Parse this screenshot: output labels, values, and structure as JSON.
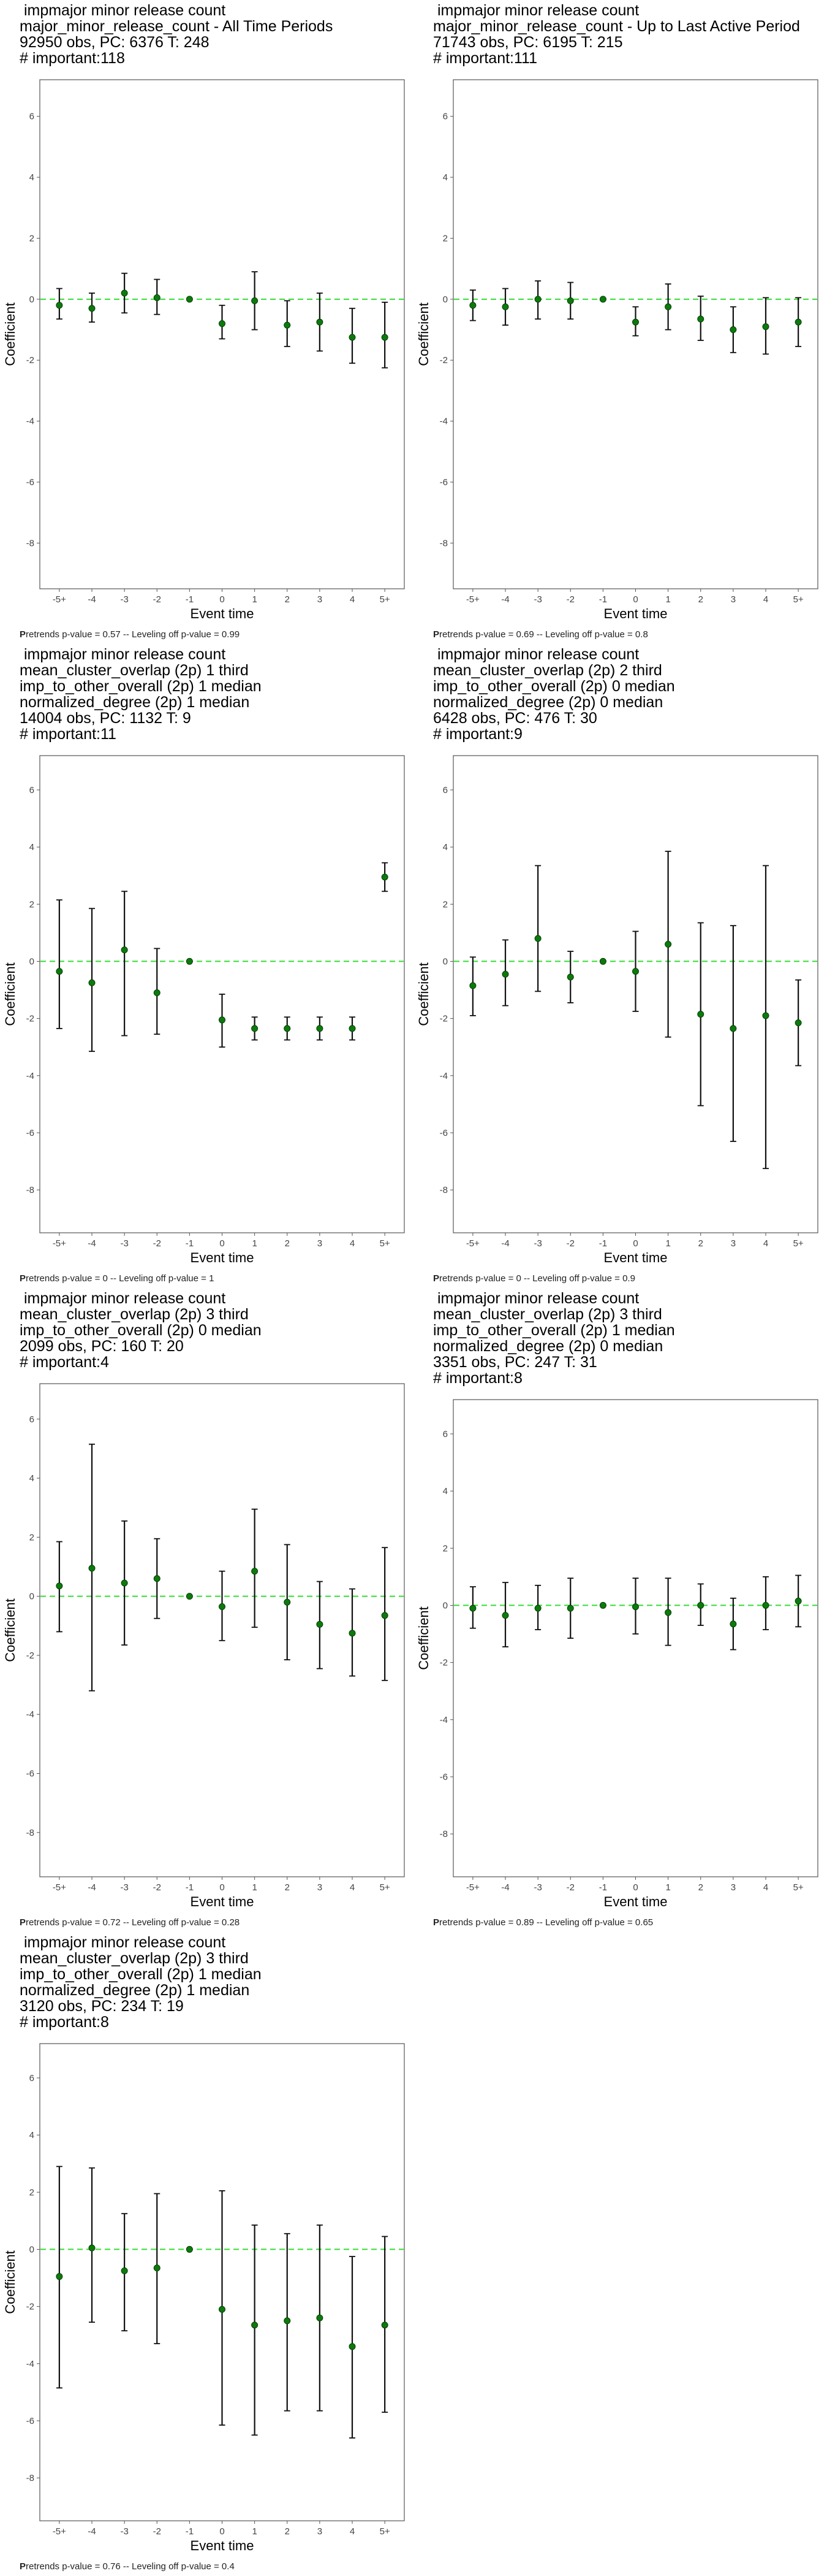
{
  "chart_data": [
    {
      "type": "scatter",
      "title_lines": [
        " impmajor minor release count",
        "major_minor_release_count - All Time Periods",
        "92950 obs, PC: 6376 T: 248",
        "# important:118"
      ],
      "xlabel": "Event time",
      "ylabel": "Coefficient",
      "categories": [
        "-5+",
        "-4",
        "-3",
        "-2",
        "-1",
        "0",
        "1",
        "2",
        "3",
        "4",
        "5+"
      ],
      "yticks": [
        6,
        4,
        2,
        0,
        -2,
        -4,
        -6,
        -8
      ],
      "ylim": [
        -9.5,
        7.2
      ],
      "estimates": [
        -0.2,
        -0.3,
        0.2,
        0.05,
        0,
        -0.8,
        -0.05,
        -0.85,
        -0.75,
        -1.25,
        -1.25
      ],
      "ci_low": [
        -0.65,
        -0.75,
        -0.45,
        -0.5,
        0,
        -1.3,
        -1.0,
        -1.55,
        -1.7,
        -2.1,
        -2.25
      ],
      "ci_high": [
        0.35,
        0.2,
        0.85,
        0.65,
        0,
        -0.2,
        0.9,
        -0.05,
        0.2,
        -0.3,
        -0.1
      ],
      "footnote_bold": "P",
      "footnote": "retrends p-value = 0.57 -- Leveling off p-value = 0.99"
    },
    {
      "type": "scatter",
      "title_lines": [
        " impmajor minor release count",
        "major_minor_release_count - Up to Last Active Period",
        "71743 obs, PC: 6195 T: 215",
        "# important:111"
      ],
      "xlabel": "Event time",
      "ylabel": "Coefficient",
      "categories": [
        "-5+",
        "-4",
        "-3",
        "-2",
        "-1",
        "0",
        "1",
        "2",
        "3",
        "4",
        "5+"
      ],
      "yticks": [
        6,
        4,
        2,
        0,
        -2,
        -4,
        -6,
        -8
      ],
      "ylim": [
        -9.5,
        7.2
      ],
      "estimates": [
        -0.2,
        -0.25,
        0.0,
        -0.05,
        0,
        -0.75,
        -0.25,
        -0.65,
        -1.0,
        -0.9,
        -0.75
      ],
      "ci_low": [
        -0.7,
        -0.85,
        -0.65,
        -0.65,
        0,
        -1.2,
        -1.0,
        -1.35,
        -1.75,
        -1.8,
        -1.55
      ],
      "ci_high": [
        0.3,
        0.35,
        0.6,
        0.55,
        0,
        -0.25,
        0.5,
        0.1,
        -0.25,
        0.05,
        0.05
      ],
      "footnote_bold": "P",
      "footnote": "retrends p-value = 0.69 -- Leveling off p-value = 0.8"
    },
    {
      "type": "scatter",
      "title_lines": [
        " impmajor minor release count",
        "mean_cluster_overlap (2p) 1 third",
        "imp_to_other_overall (2p) 1 median",
        "normalized_degree (2p) 1 median",
        "14004 obs, PC: 1132 T: 9",
        "# important:11"
      ],
      "xlabel": "Event time",
      "ylabel": "Coefficient",
      "categories": [
        "-5+",
        "-4",
        "-3",
        "-2",
        "-1",
        "0",
        "1",
        "2",
        "3",
        "4",
        "5+"
      ],
      "yticks": [
        6,
        4,
        2,
        0,
        -2,
        -4,
        -6,
        -8
      ],
      "ylim": [
        -9.5,
        7.2
      ],
      "estimates": [
        -0.35,
        -0.75,
        0.4,
        -1.1,
        0,
        -2.05,
        -2.35,
        -2.35,
        -2.35,
        -2.35,
        2.95
      ],
      "ci_low": [
        -2.35,
        -3.15,
        -2.6,
        -2.55,
        0,
        -3.0,
        -2.75,
        -2.75,
        -2.75,
        -2.75,
        2.45
      ],
      "ci_high": [
        2.15,
        1.85,
        2.45,
        0.45,
        0,
        -1.15,
        -1.95,
        -1.95,
        -1.95,
        -1.95,
        3.45
      ],
      "footnote_bold": "P",
      "footnote": "retrends p-value = 0 -- Leveling off p-value = 1"
    },
    {
      "type": "scatter",
      "title_lines": [
        " impmajor minor release count",
        "mean_cluster_overlap (2p) 2 third",
        "imp_to_other_overall (2p) 0 median",
        "normalized_degree (2p) 0 median",
        "6428 obs, PC: 476 T: 30",
        "# important:9"
      ],
      "xlabel": "Event time",
      "ylabel": "Coefficient",
      "categories": [
        "-5+",
        "-4",
        "-3",
        "-2",
        "-1",
        "0",
        "1",
        "2",
        "3",
        "4",
        "5+"
      ],
      "yticks": [
        6,
        4,
        2,
        0,
        -2,
        -4,
        -6,
        -8
      ],
      "ylim": [
        -9.5,
        7.2
      ],
      "estimates": [
        -0.85,
        -0.45,
        0.8,
        -0.55,
        0,
        -0.35,
        0.6,
        -1.85,
        -2.35,
        -1.9,
        -2.15
      ],
      "ci_low": [
        -1.9,
        -1.55,
        -1.05,
        -1.45,
        0,
        -1.75,
        -2.65,
        -5.05,
        -6.3,
        -7.25,
        -3.65
      ],
      "ci_high": [
        0.15,
        0.75,
        3.35,
        0.35,
        0,
        1.05,
        3.85,
        1.35,
        1.25,
        3.35,
        -0.65
      ],
      "footnote_bold": "P",
      "footnote": "retrends p-value = 0 -- Leveling off p-value = 0.9"
    },
    {
      "type": "scatter",
      "title_lines": [
        " impmajor minor release count",
        "mean_cluster_overlap (2p) 3 third",
        "imp_to_other_overall (2p) 0 median",
        "2099 obs, PC: 160 T: 20",
        "# important:4"
      ],
      "xlabel": "Event time",
      "ylabel": "Coefficient",
      "categories": [
        "-5+",
        "-4",
        "-3",
        "-2",
        "-1",
        "0",
        "1",
        "2",
        "3",
        "4",
        "5+"
      ],
      "yticks": [
        6,
        4,
        2,
        0,
        -2,
        -4,
        -6,
        -8
      ],
      "ylim": [
        -9.5,
        7.2
      ],
      "estimates": [
        0.35,
        0.95,
        0.45,
        0.6,
        0,
        -0.35,
        0.85,
        -0.2,
        -0.95,
        -1.25,
        -0.65
      ],
      "ci_low": [
        -1.2,
        -3.2,
        -1.65,
        -0.75,
        0,
        -1.5,
        -1.05,
        -2.15,
        -2.45,
        -2.7,
        -2.85
      ],
      "ci_high": [
        1.85,
        5.15,
        2.55,
        1.95,
        0,
        0.85,
        2.95,
        1.75,
        0.5,
        0.25,
        1.65
      ],
      "footnote_bold": "P",
      "footnote": "retrends p-value = 0.72 -- Leveling off p-value = 0.28"
    },
    {
      "type": "scatter",
      "title_lines": [
        " impmajor minor release count",
        "mean_cluster_overlap (2p) 3 third",
        "imp_to_other_overall (2p) 1 median",
        "normalized_degree (2p) 0 median",
        "3351 obs, PC: 247 T: 31",
        "# important:8"
      ],
      "xlabel": "Event time",
      "ylabel": "Coefficient",
      "categories": [
        "-5+",
        "-4",
        "-3",
        "-2",
        "-1",
        "0",
        "1",
        "2",
        "3",
        "4",
        "5+"
      ],
      "yticks": [
        6,
        4,
        2,
        0,
        -2,
        -4,
        -6,
        -8
      ],
      "ylim": [
        -9.5,
        7.2
      ],
      "estimates": [
        -0.1,
        -0.35,
        -0.1,
        -0.1,
        0,
        -0.05,
        -0.25,
        0.0,
        -0.65,
        0.0,
        0.15
      ],
      "ci_low": [
        -0.8,
        -1.45,
        -0.85,
        -1.15,
        0,
        -1.0,
        -1.4,
        -0.7,
        -1.55,
        -0.85,
        -0.75
      ],
      "ci_high": [
        0.65,
        0.8,
        0.7,
        0.95,
        0,
        0.95,
        0.95,
        0.75,
        0.25,
        1.0,
        1.05
      ],
      "footnote_bold": "P",
      "footnote": "retrends p-value = 0.89 -- Leveling off p-value = 0.65"
    },
    {
      "type": "scatter",
      "title_lines": [
        " impmajor minor release count",
        "mean_cluster_overlap (2p) 3 third",
        "imp_to_other_overall (2p) 1 median",
        "normalized_degree (2p) 1 median",
        "3120 obs, PC: 234 T: 19",
        "# important:8"
      ],
      "xlabel": "Event time",
      "ylabel": "Coefficient",
      "categories": [
        "-5+",
        "-4",
        "-3",
        "-2",
        "-1",
        "0",
        "1",
        "2",
        "3",
        "4",
        "5+"
      ],
      "yticks": [
        6,
        4,
        2,
        0,
        -2,
        -4,
        -6,
        -8
      ],
      "ylim": [
        -9.5,
        7.2
      ],
      "estimates": [
        -0.95,
        0.05,
        -0.75,
        -0.65,
        0,
        -2.1,
        -2.65,
        -2.5,
        -2.4,
        -3.4,
        -2.65
      ],
      "ci_low": [
        -4.85,
        -2.55,
        -2.85,
        -3.3,
        0,
        -6.15,
        -6.5,
        -5.65,
        -5.65,
        -6.6,
        -5.7
      ],
      "ci_high": [
        2.9,
        2.85,
        1.25,
        1.95,
        0,
        2.05,
        0.85,
        0.55,
        0.85,
        -0.25,
        0.45
      ],
      "footnote_bold": "P",
      "footnote": "retrends p-value = 0.76 -- Leveling off p-value = 0.4"
    }
  ]
}
